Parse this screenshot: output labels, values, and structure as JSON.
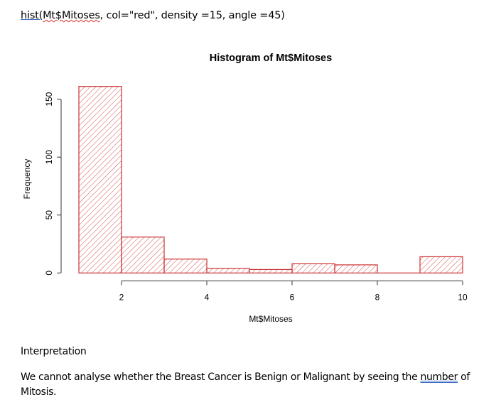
{
  "code": {
    "fn": "hist(",
    "arg": "Mt$Mitoses",
    "rest": ", col=\"red\", density =15, angle =45)"
  },
  "colors": {
    "bar": "#cc3333",
    "axis": "#333333",
    "text": "#000000"
  },
  "chart_data": {
    "type": "bar",
    "title": "Histogram of Mt$Mitoses",
    "xlabel": "Mt$Mitoses",
    "ylabel": "Frequency",
    "breaks": [
      1,
      2,
      3,
      4,
      5,
      6,
      7,
      8,
      9,
      10
    ],
    "categories": [
      "1-2",
      "2-3",
      "3-4",
      "4-5",
      "5-6",
      "6-7",
      "7-8",
      "8-9",
      "9-10"
    ],
    "values": [
      161,
      31,
      12,
      4,
      3,
      8,
      7,
      0,
      14
    ],
    "xticks": [
      2,
      4,
      6,
      8,
      10
    ],
    "yticks": [
      0,
      50,
      100,
      150
    ],
    "xlim": [
      1,
      10
    ],
    "ylim": [
      0,
      161
    ],
    "grid": false,
    "fill": "hatched red lines, density 15, angle 45"
  },
  "interpretation": {
    "title": "Interpretation",
    "body_before": "We cannot analyse whether the Breast Cancer is Benign or Malignant by seeing the ",
    "body_underlined": "number",
    "body_after": " of Mitosis."
  }
}
